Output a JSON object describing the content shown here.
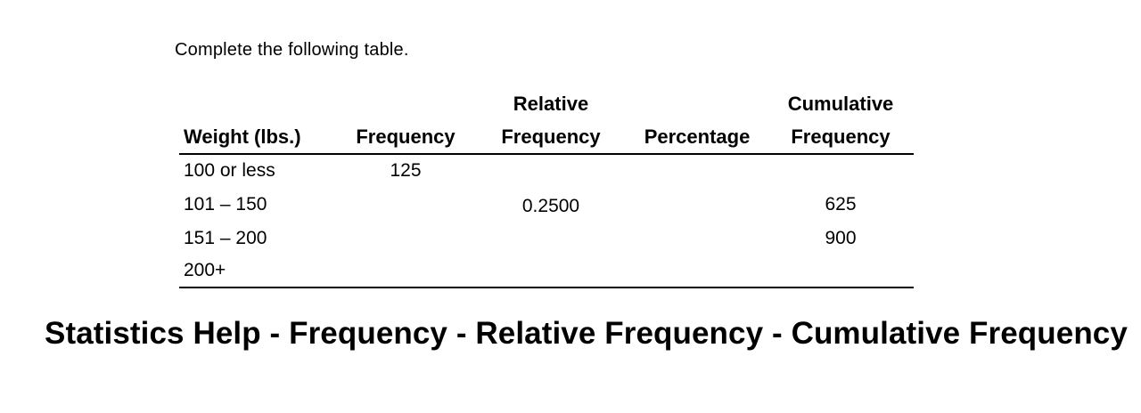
{
  "instruction": "Complete the following table.",
  "table": {
    "headers": [
      {
        "line1": "",
        "line2": "Weight (lbs.)"
      },
      {
        "line1": "",
        "line2": "Frequency"
      },
      {
        "line1": "Relative",
        "line2": "Frequency"
      },
      {
        "line1": "",
        "line2": "Percentage"
      },
      {
        "line1": "Cumulative",
        "line2": "Frequency"
      }
    ],
    "rows": [
      [
        "100 or less",
        "125",
        "",
        "",
        ""
      ],
      [
        "101 – 150",
        "",
        "0.2500",
        "",
        "625"
      ],
      [
        "151 – 200",
        "",
        "",
        "",
        "900"
      ],
      [
        "200+",
        "",
        "",
        "",
        ""
      ]
    ]
  },
  "footer_title": "Statistics Help - Frequency - Relative Frequency - Cumulative Frequency"
}
